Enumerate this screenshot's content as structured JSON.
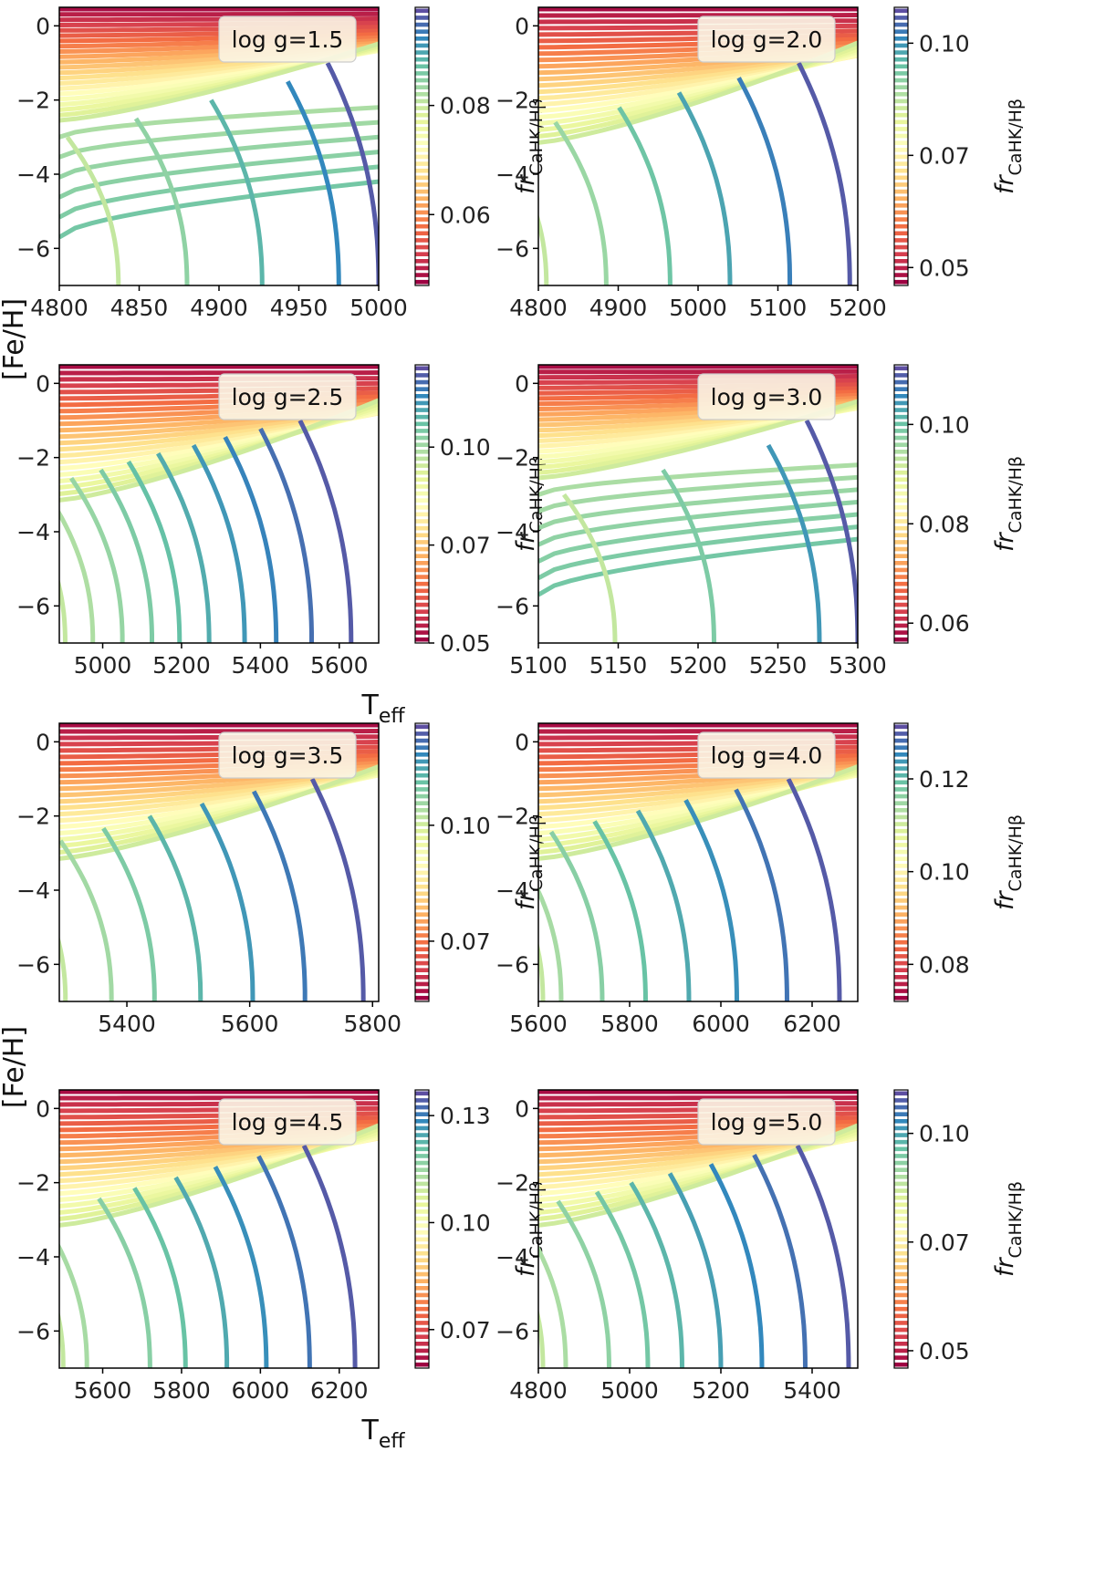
{
  "figure": {
    "ylabel": "[Fe/H]",
    "xlabel": "T",
    "xlabel_sub": "eff",
    "colorbar_label": "fr",
    "colorbar_label_sub": "CaHK/Hβ"
  },
  "chart_data": [
    {
      "type": "line",
      "legend": "log g=1.5",
      "xlim": [
        4800,
        5000
      ],
      "ylim": [
        -7,
        0.5
      ],
      "xticks": [
        4800,
        4850,
        4900,
        4950,
        5000
      ],
      "yticks": [
        -6,
        -4,
        -2,
        0
      ],
      "cbar_range": [
        0.047,
        0.098
      ],
      "cbar_ticks": [
        0.06,
        0.08
      ],
      "show_xlabel": false,
      "blue_x": [
        4837,
        4880,
        4927,
        4975,
        5000
      ],
      "n_sat": 6,
      "slope_spread": 0.45
    },
    {
      "type": "line",
      "legend": "log g=2.0",
      "xlim": [
        4800,
        5200
      ],
      "ylim": [
        -7,
        0.5
      ],
      "xticks": [
        4800,
        4900,
        5000,
        5100,
        5200
      ],
      "yticks": [
        -6,
        -4,
        -2,
        0
      ],
      "cbar_range": [
        0.046,
        0.108
      ],
      "cbar_ticks": [
        0.05,
        0.075,
        0.1
      ],
      "show_xlabel": false,
      "blue_x": [
        4810,
        4885,
        4965,
        5040,
        5115,
        5190
      ],
      "n_sat": 0,
      "slope_spread": 0.6
    },
    {
      "type": "line",
      "legend": "log g=2.5",
      "xlim": [
        4890,
        5700
      ],
      "ylim": [
        -7,
        0.5
      ],
      "xticks": [
        5000,
        5200,
        5400,
        5600
      ],
      "yticks": [
        -6,
        -4,
        -2,
        0
      ],
      "cbar_range": [
        0.05,
        0.121
      ],
      "cbar_ticks": [
        0.05,
        0.075,
        0.1
      ],
      "show_xlabel": true,
      "blue_x": [
        4905,
        4975,
        5050,
        5125,
        5195,
        5270,
        5360,
        5440,
        5530,
        5630
      ],
      "n_sat": 0,
      "slope_spread": 0.6
    },
    {
      "type": "line",
      "legend": "log g=3.0",
      "xlim": [
        5100,
        5300
      ],
      "ylim": [
        -7,
        0.5
      ],
      "xticks": [
        5100,
        5150,
        5200,
        5250,
        5300
      ],
      "yticks": [
        -6,
        -4,
        -2,
        0
      ],
      "cbar_range": [
        0.056,
        0.112
      ],
      "cbar_ticks": [
        0.06,
        0.08,
        0.1
      ],
      "show_xlabel": false,
      "blue_x": [
        5148,
        5210,
        5276,
        5300
      ],
      "n_sat": 7,
      "slope_spread": 0.45
    },
    {
      "type": "line",
      "legend": "log g=3.5",
      "xlim": [
        5290,
        5810
      ],
      "ylim": [
        -7,
        0.5
      ],
      "xticks": [
        5400,
        5600,
        5800
      ],
      "yticks": [
        -6,
        -4,
        -2,
        0
      ],
      "cbar_range": [
        0.062,
        0.122
      ],
      "cbar_ticks": [
        0.075,
        0.1
      ],
      "show_xlabel": false,
      "blue_x": [
        5300,
        5375,
        5445,
        5520,
        5605,
        5690,
        5785
      ],
      "n_sat": 0,
      "slope_spread": 0.55
    },
    {
      "type": "line",
      "legend": "log g=4.0",
      "xlim": [
        5600,
        6300
      ],
      "ylim": [
        -7,
        0.5
      ],
      "xticks": [
        5600,
        5800,
        6000,
        6200
      ],
      "yticks": [
        -6,
        -4,
        -2,
        0
      ],
      "cbar_range": [
        0.072,
        0.132
      ],
      "cbar_ticks": [
        0.08,
        0.1,
        0.12
      ],
      "show_xlabel": false,
      "blue_x": [
        5610,
        5650,
        5740,
        5835,
        5930,
        6035,
        6145,
        6260
      ],
      "n_sat": 0,
      "slope_spread": 0.55
    },
    {
      "type": "line",
      "legend": "log g=4.5",
      "xlim": [
        5490,
        6300
      ],
      "ylim": [
        -7,
        0.5
      ],
      "xticks": [
        5600,
        5800,
        6000,
        6200
      ],
      "yticks": [
        -6,
        -4,
        -2,
        0
      ],
      "cbar_range": [
        0.066,
        0.131
      ],
      "cbar_ticks": [
        0.075,
        0.1,
        0.125
      ],
      "show_xlabel": true,
      "blue_x": [
        5500,
        5560,
        5720,
        5810,
        5915,
        6015,
        6125,
        6240
      ],
      "n_sat": 0,
      "slope_spread": 0.6
    },
    {
      "type": "line",
      "legend": "log g=5.0",
      "xlim": [
        4800,
        5500
      ],
      "ylim": [
        -7,
        0.5
      ],
      "xticks": [
        4800,
        5000,
        5200,
        5400
      ],
      "yticks": [
        -6,
        -4,
        -2,
        0
      ],
      "cbar_range": [
        0.046,
        0.11
      ],
      "cbar_ticks": [
        0.05,
        0.075,
        0.1
      ],
      "show_xlabel": false,
      "blue_x": [
        4810,
        4860,
        4955,
        5040,
        5115,
        5200,
        5290,
        5385,
        5480
      ],
      "n_sat": 0,
      "slope_spread": 0.6
    }
  ]
}
